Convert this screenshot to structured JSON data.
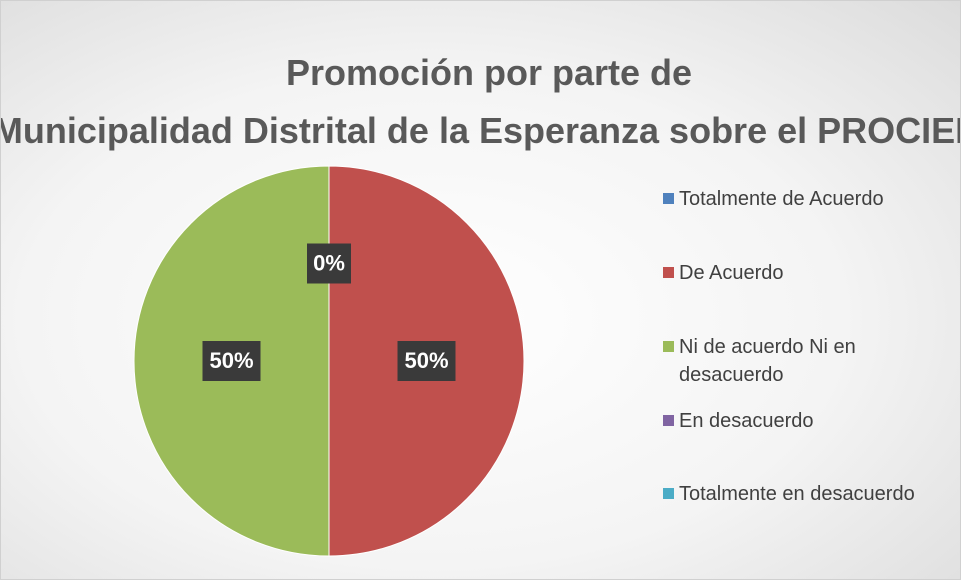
{
  "chart_data": {
    "type": "pie",
    "title": "Promoción por parte de Municipalidad Distrital de la Esperanza sobre el PROCIEM",
    "categories": [
      "Totalmente de Acuerdo",
      "De Acuerdo",
      "Ni de acuerdo Ni en desacuerdo",
      "En desacuerdo",
      "Totalmente en desacuerdo"
    ],
    "values": [
      0,
      50,
      50,
      0,
      0
    ],
    "value_labels": [
      "0%",
      "50%",
      "50%",
      null,
      null
    ],
    "colors": [
      "#4f81bd",
      "#c0504d",
      "#9bbb59",
      "#8064a2",
      "#4bacc6"
    ],
    "legend": "right"
  }
}
